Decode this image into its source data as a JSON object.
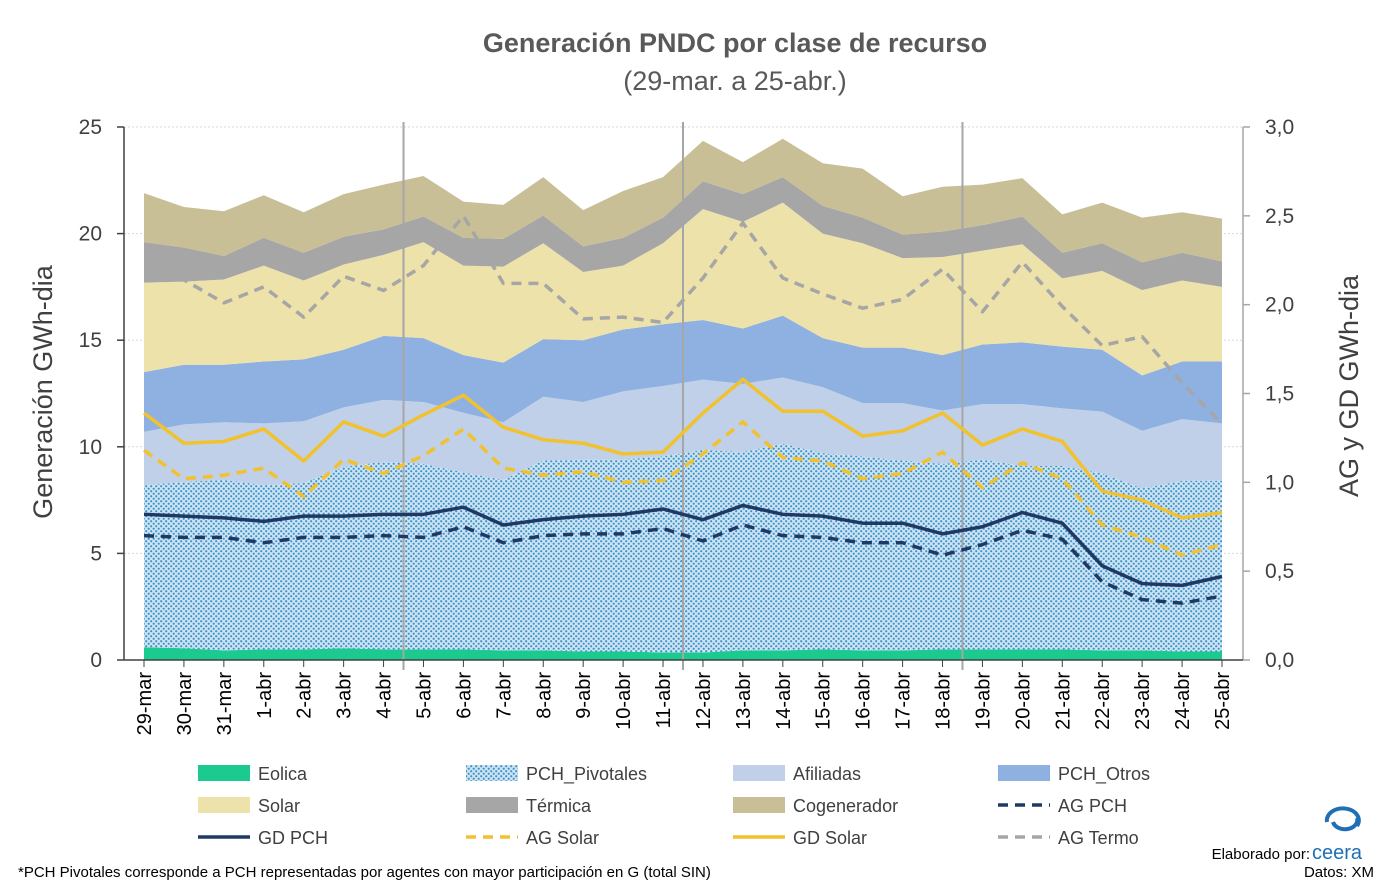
{
  "chart_data": {
    "type": "area",
    "title": "Generación PNDC por clase de recurso",
    "subtitle": "(29-mar. a 25-abr.)",
    "ylabel": "Generación GWh-dia",
    "y2label": "AG y GD  GWh-dia",
    "ylim": [
      0,
      25
    ],
    "y2lim": [
      0,
      3.0
    ],
    "yticks": [
      "0",
      "5",
      "10",
      "15",
      "20",
      "25"
    ],
    "y2ticks": [
      "0,0",
      "0,5",
      "1,0",
      "1,5",
      "2,0",
      "2,5",
      "3,0"
    ],
    "categories": [
      "29-mar",
      "30-mar",
      "31-mar",
      "1-abr",
      "2-abr",
      "3-abr",
      "4-abr",
      "5-abr",
      "6-abr",
      "7-abr",
      "8-abr",
      "9-abr",
      "10-abr",
      "11-abr",
      "12-abr",
      "13-abr",
      "14-abr",
      "15-abr",
      "16-abr",
      "17-abr",
      "18-abr",
      "19-abr",
      "20-abr",
      "21-abr",
      "22-abr",
      "23-abr",
      "24-abr",
      "25-abr"
    ],
    "stacked_series": [
      {
        "name": "Eolica",
        "color": "#1cc98e",
        "values": [
          0.6,
          0.55,
          0.45,
          0.5,
          0.5,
          0.55,
          0.5,
          0.5,
          0.5,
          0.45,
          0.45,
          0.4,
          0.4,
          0.35,
          0.35,
          0.45,
          0.45,
          0.5,
          0.45,
          0.45,
          0.5,
          0.5,
          0.5,
          0.5,
          0.45,
          0.45,
          0.4,
          0.4
        ]
      },
      {
        "name": "PCH_Pivotales",
        "color": "#5aaad6",
        "pattern": true,
        "values": [
          7.6,
          7.8,
          8.0,
          7.7,
          7.8,
          8.5,
          8.8,
          8.7,
          8.3,
          8.0,
          8.9,
          9.0,
          9.0,
          9.2,
          9.5,
          9.3,
          9.7,
          9.2,
          9.1,
          8.9,
          8.7,
          8.9,
          8.6,
          8.6,
          8.3,
          7.6,
          8.0,
          8.0
        ]
      },
      {
        "name": "Afiliadas",
        "color": "#bfd0e8",
        "values": [
          2.5,
          2.7,
          2.7,
          2.9,
          2.9,
          2.8,
          2.9,
          2.9,
          2.8,
          2.7,
          3.0,
          2.7,
          3.2,
          3.3,
          3.3,
          3.2,
          3.1,
          3.1,
          2.5,
          2.7,
          2.5,
          2.6,
          2.9,
          2.7,
          2.9,
          2.7,
          2.9,
          2.7
        ]
      },
      {
        "name": "PCH_Otros",
        "color": "#8eb1e1",
        "values": [
          2.8,
          2.8,
          2.7,
          2.9,
          2.9,
          2.7,
          3.0,
          3.0,
          2.7,
          2.8,
          2.7,
          2.9,
          2.9,
          2.9,
          2.8,
          2.6,
          2.9,
          2.3,
          2.6,
          2.6,
          2.6,
          2.8,
          2.9,
          2.9,
          2.9,
          2.6,
          2.7,
          2.9
        ]
      },
      {
        "name": "Solar",
        "color": "#ede2aa",
        "values": [
          4.2,
          3.9,
          4.0,
          4.5,
          3.7,
          4.0,
          3.8,
          4.5,
          4.2,
          4.5,
          4.5,
          3.2,
          3.0,
          3.8,
          5.2,
          5.0,
          5.3,
          4.9,
          4.9,
          4.2,
          4.6,
          4.4,
          4.6,
          3.2,
          3.7,
          4.0,
          3.8,
          3.5
        ]
      },
      {
        "name": "Térmica",
        "color": "#a6a6a6",
        "values": [
          1.9,
          1.6,
          1.1,
          1.3,
          1.3,
          1.3,
          1.2,
          1.2,
          1.3,
          1.3,
          1.3,
          1.2,
          1.3,
          1.2,
          1.3,
          1.3,
          1.2,
          1.3,
          1.2,
          1.1,
          1.2,
          1.2,
          1.3,
          1.2,
          1.3,
          1.3,
          1.3,
          1.2
        ]
      },
      {
        "name": "Cogenerador",
        "color": "#c8bf97",
        "values": [
          2.3,
          1.9,
          2.1,
          2.0,
          1.9,
          2.0,
          2.1,
          1.9,
          1.7,
          1.6,
          1.8,
          1.7,
          2.2,
          1.9,
          1.9,
          1.5,
          1.8,
          2.0,
          2.3,
          1.8,
          2.1,
          1.9,
          1.8,
          1.8,
          1.9,
          2.1,
          1.9,
          2.0
        ]
      }
    ],
    "line_series": [
      {
        "name": "AG PCH",
        "color": "#1f3864",
        "dash": true,
        "axis": "y2",
        "values": [
          0.7,
          0.69,
          0.69,
          0.66,
          0.69,
          0.69,
          0.7,
          0.69,
          0.75,
          0.66,
          0.7,
          0.71,
          0.71,
          0.74,
          0.67,
          0.76,
          0.7,
          0.69,
          0.66,
          0.66,
          0.59,
          0.65,
          0.73,
          0.68,
          0.44,
          0.34,
          0.32,
          0.36
        ]
      },
      {
        "name": "GD PCH",
        "color": "#1f3864",
        "dash": false,
        "axis": "y2",
        "values": [
          0.82,
          0.81,
          0.8,
          0.78,
          0.81,
          0.81,
          0.82,
          0.82,
          0.86,
          0.76,
          0.79,
          0.81,
          0.82,
          0.85,
          0.79,
          0.87,
          0.82,
          0.81,
          0.77,
          0.77,
          0.71,
          0.75,
          0.83,
          0.77,
          0.53,
          0.43,
          0.42,
          0.47
        ]
      },
      {
        "name": "AG Solar",
        "color": "#f2c12e",
        "dash": true,
        "axis": "y2",
        "values": [
          1.18,
          1.02,
          1.04,
          1.08,
          0.92,
          1.13,
          1.05,
          1.15,
          1.3,
          1.08,
          1.04,
          1.06,
          1.0,
          1.01,
          1.16,
          1.34,
          1.14,
          1.12,
          1.02,
          1.05,
          1.17,
          0.97,
          1.11,
          1.02,
          0.76,
          0.69,
          0.59,
          0.65
        ]
      },
      {
        "name": "GD Solar",
        "color": "#f2c12e",
        "dash": false,
        "axis": "y2",
        "values": [
          1.39,
          1.22,
          1.23,
          1.3,
          1.12,
          1.34,
          1.26,
          1.38,
          1.49,
          1.31,
          1.24,
          1.22,
          1.16,
          1.17,
          1.39,
          1.58,
          1.4,
          1.4,
          1.26,
          1.29,
          1.39,
          1.21,
          1.3,
          1.23,
          0.95,
          0.9,
          0.8,
          0.83
        ]
      },
      {
        "name": "AG Termo",
        "color": "#a6a6a6",
        "dash": true,
        "axis": "y2",
        "values": [
          2.15,
          2.14,
          2.01,
          2.1,
          1.93,
          2.16,
          2.08,
          2.22,
          2.5,
          2.12,
          2.12,
          1.92,
          1.93,
          1.9,
          2.15,
          2.46,
          2.15,
          2.06,
          1.98,
          2.03,
          2.2,
          1.96,
          2.24,
          1.99,
          1.77,
          1.82,
          1.56,
          1.33
        ]
      }
    ],
    "vertical_markers": [
      6.5,
      13.5,
      20.5
    ],
    "grid": true,
    "legend_position": "bottom"
  },
  "footnote": "*PCH Pivotales corresponde a PCH representadas por agentes con mayor participación en G (total SIN)",
  "credit": {
    "elaborado": "Elaborado por:",
    "brand": "ceera",
    "datos": "Datos: XM"
  }
}
